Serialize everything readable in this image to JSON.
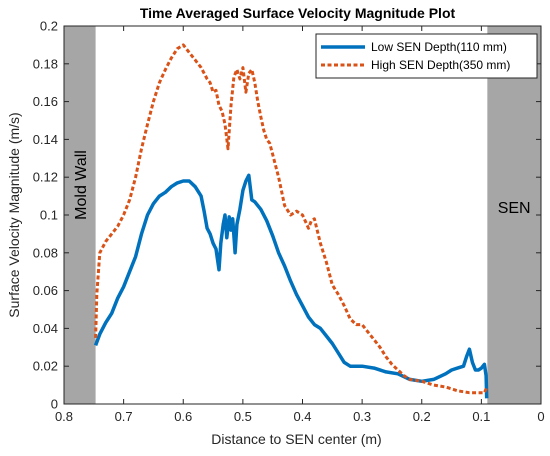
{
  "chart_data": {
    "type": "line",
    "title": "Time Averaged Surface Velocity Magnitude Plot",
    "xlabel": "Distance to SEN center (m)",
    "ylabel": "Surface Velocity Magnitude  (m/s)",
    "xlim": [
      0.8,
      0
    ],
    "x_reversed": true,
    "ylim": [
      0,
      0.2
    ],
    "xticks": [
      0.8,
      0.7,
      0.6,
      0.5,
      0.4,
      0.3,
      0.2,
      0.1,
      0
    ],
    "yticks": [
      0,
      0.02,
      0.04,
      0.06,
      0.08,
      0.1,
      0.12,
      0.14,
      0.16,
      0.18,
      0.2
    ],
    "xtick_labels": [
      "0.8",
      "0.7",
      "0.6",
      "0.5",
      "0.4",
      "0.3",
      "0.2",
      "0.1",
      "0"
    ],
    "ytick_labels": [
      "0",
      "0.02",
      "0.04",
      "0.06",
      "0.08",
      "0.1",
      "0.12",
      "0.14",
      "0.16",
      "0.18",
      "0.2"
    ],
    "grid": false,
    "legend_position": "top-right",
    "regions": [
      {
        "label": "Mold Wall",
        "x_start": 0.8,
        "x_end": 0.747,
        "color": "#a6a6a6"
      },
      {
        "label": "SEN",
        "x_start": 0.09,
        "x_end": 0.0,
        "color": "#a6a6a6"
      }
    ],
    "series": [
      {
        "name": "Low SEN Depth(110 mm)",
        "color": "#0072bd",
        "style": "solid",
        "points": [
          [
            0.747,
            0.031
          ],
          [
            0.74,
            0.037
          ],
          [
            0.73,
            0.043
          ],
          [
            0.72,
            0.048
          ],
          [
            0.71,
            0.056
          ],
          [
            0.7,
            0.062
          ],
          [
            0.69,
            0.07
          ],
          [
            0.68,
            0.078
          ],
          [
            0.67,
            0.09
          ],
          [
            0.66,
            0.1
          ],
          [
            0.65,
            0.106
          ],
          [
            0.64,
            0.11
          ],
          [
            0.63,
            0.112
          ],
          [
            0.62,
            0.115
          ],
          [
            0.61,
            0.117
          ],
          [
            0.6,
            0.118
          ],
          [
            0.59,
            0.118
          ],
          [
            0.58,
            0.115
          ],
          [
            0.57,
            0.11
          ],
          [
            0.565,
            0.102
          ],
          [
            0.56,
            0.093
          ],
          [
            0.555,
            0.09
          ],
          [
            0.55,
            0.085
          ],
          [
            0.545,
            0.082
          ],
          [
            0.54,
            0.071
          ],
          [
            0.537,
            0.085
          ],
          [
            0.533,
            0.095
          ],
          [
            0.53,
            0.1
          ],
          [
            0.527,
            0.088
          ],
          [
            0.523,
            0.099
          ],
          [
            0.52,
            0.092
          ],
          [
            0.517,
            0.098
          ],
          [
            0.513,
            0.08
          ],
          [
            0.51,
            0.095
          ],
          [
            0.505,
            0.103
          ],
          [
            0.5,
            0.113
          ],
          [
            0.495,
            0.118
          ],
          [
            0.49,
            0.121
          ],
          [
            0.485,
            0.108
          ],
          [
            0.48,
            0.107
          ],
          [
            0.47,
            0.103
          ],
          [
            0.46,
            0.097
          ],
          [
            0.45,
            0.089
          ],
          [
            0.44,
            0.08
          ],
          [
            0.43,
            0.073
          ],
          [
            0.42,
            0.065
          ],
          [
            0.41,
            0.058
          ],
          [
            0.4,
            0.052
          ],
          [
            0.39,
            0.046
          ],
          [
            0.38,
            0.042
          ],
          [
            0.37,
            0.04
          ],
          [
            0.36,
            0.036
          ],
          [
            0.35,
            0.032
          ],
          [
            0.34,
            0.027
          ],
          [
            0.33,
            0.022
          ],
          [
            0.32,
            0.02
          ],
          [
            0.3,
            0.02
          ],
          [
            0.28,
            0.019
          ],
          [
            0.26,
            0.017
          ],
          [
            0.24,
            0.016
          ],
          [
            0.22,
            0.013
          ],
          [
            0.2,
            0.012
          ],
          [
            0.18,
            0.013
          ],
          [
            0.16,
            0.016
          ],
          [
            0.15,
            0.018
          ],
          [
            0.14,
            0.019
          ],
          [
            0.13,
            0.02
          ],
          [
            0.125,
            0.025
          ],
          [
            0.12,
            0.029
          ],
          [
            0.115,
            0.022
          ],
          [
            0.11,
            0.018
          ],
          [
            0.105,
            0.018
          ],
          [
            0.1,
            0.019
          ],
          [
            0.095,
            0.021
          ],
          [
            0.092,
            0.015
          ],
          [
            0.091,
            0.003
          ]
        ]
      },
      {
        "name": "High SEN Depth(350 mm)",
        "color": "#d95319",
        "style": "dotted",
        "points": [
          [
            0.747,
            0.035
          ],
          [
            0.745,
            0.058
          ],
          [
            0.74,
            0.08
          ],
          [
            0.735,
            0.083
          ],
          [
            0.73,
            0.086
          ],
          [
            0.72,
            0.09
          ],
          [
            0.71,
            0.094
          ],
          [
            0.7,
            0.1
          ],
          [
            0.69,
            0.108
          ],
          [
            0.68,
            0.12
          ],
          [
            0.67,
            0.135
          ],
          [
            0.66,
            0.148
          ],
          [
            0.65,
            0.16
          ],
          [
            0.64,
            0.17
          ],
          [
            0.63,
            0.177
          ],
          [
            0.62,
            0.183
          ],
          [
            0.61,
            0.188
          ],
          [
            0.6,
            0.19
          ],
          [
            0.59,
            0.186
          ],
          [
            0.58,
            0.182
          ],
          [
            0.57,
            0.178
          ],
          [
            0.56,
            0.172
          ],
          [
            0.555,
            0.17
          ],
          [
            0.55,
            0.165
          ],
          [
            0.545,
            0.166
          ],
          [
            0.54,
            0.158
          ],
          [
            0.535,
            0.155
          ],
          [
            0.53,
            0.148
          ],
          [
            0.525,
            0.135
          ],
          [
            0.52,
            0.158
          ],
          [
            0.515,
            0.173
          ],
          [
            0.51,
            0.177
          ],
          [
            0.505,
            0.172
          ],
          [
            0.5,
            0.178
          ],
          [
            0.495,
            0.165
          ],
          [
            0.49,
            0.175
          ],
          [
            0.485,
            0.177
          ],
          [
            0.48,
            0.17
          ],
          [
            0.475,
            0.16
          ],
          [
            0.47,
            0.152
          ],
          [
            0.465,
            0.145
          ],
          [
            0.46,
            0.14
          ],
          [
            0.455,
            0.138
          ],
          [
            0.45,
            0.132
          ],
          [
            0.44,
            0.12
          ],
          [
            0.43,
            0.105
          ],
          [
            0.42,
            0.1
          ],
          [
            0.41,
            0.102
          ],
          [
            0.4,
            0.1
          ],
          [
            0.39,
            0.093
          ],
          [
            0.385,
            0.097
          ],
          [
            0.38,
            0.098
          ],
          [
            0.37,
            0.085
          ],
          [
            0.36,
            0.075
          ],
          [
            0.35,
            0.063
          ],
          [
            0.34,
            0.058
          ],
          [
            0.33,
            0.052
          ],
          [
            0.32,
            0.045
          ],
          [
            0.31,
            0.042
          ],
          [
            0.3,
            0.042
          ],
          [
            0.29,
            0.038
          ],
          [
            0.28,
            0.034
          ],
          [
            0.27,
            0.03
          ],
          [
            0.26,
            0.025
          ],
          [
            0.25,
            0.021
          ],
          [
            0.24,
            0.018
          ],
          [
            0.23,
            0.015
          ],
          [
            0.22,
            0.013
          ],
          [
            0.2,
            0.012
          ],
          [
            0.18,
            0.01
          ],
          [
            0.16,
            0.009
          ],
          [
            0.15,
            0.008
          ],
          [
            0.14,
            0.007
          ],
          [
            0.12,
            0.006
          ],
          [
            0.1,
            0.006
          ],
          [
            0.095,
            0.006
          ],
          [
            0.092,
            0.008
          ],
          [
            0.091,
            0.009
          ]
        ]
      }
    ]
  }
}
